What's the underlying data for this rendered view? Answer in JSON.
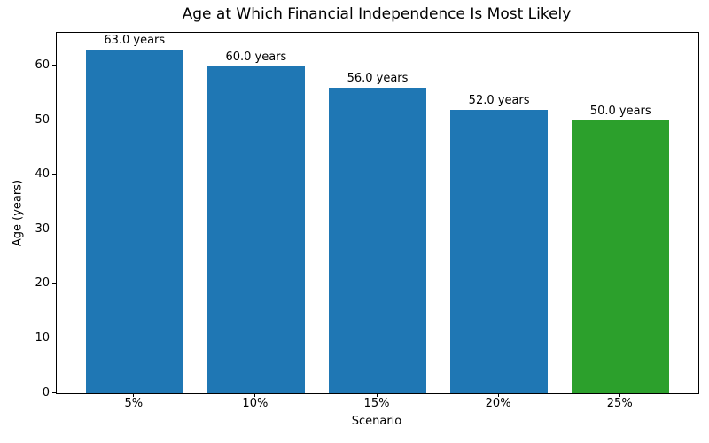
{
  "chart_data": {
    "type": "bar",
    "title": "Age at Which Financial Independence Is Most Likely",
    "xlabel": "Scenario",
    "ylabel": "Age (years)",
    "categories": [
      "5%",
      "10%",
      "15%",
      "20%",
      "25%"
    ],
    "values": [
      63.0,
      60.0,
      56.0,
      52.0,
      50.0
    ],
    "bar_labels": [
      "63.0 years",
      "60.0 years",
      "56.0 years",
      "52.0 years",
      "50.0 years"
    ],
    "bar_colors": [
      "#1f77b4",
      "#1f77b4",
      "#1f77b4",
      "#1f77b4",
      "#2ca02c"
    ],
    "yticks": [
      0,
      10,
      20,
      30,
      40,
      50,
      60
    ],
    "ylim": [
      0,
      66.15
    ],
    "grid": false,
    "legend_position": "none",
    "colors": {
      "bar_default": "#1f77b4",
      "bar_highlight": "#2ca02c",
      "spine": "#000000",
      "text": "#000000",
      "background": "#ffffff"
    }
  }
}
